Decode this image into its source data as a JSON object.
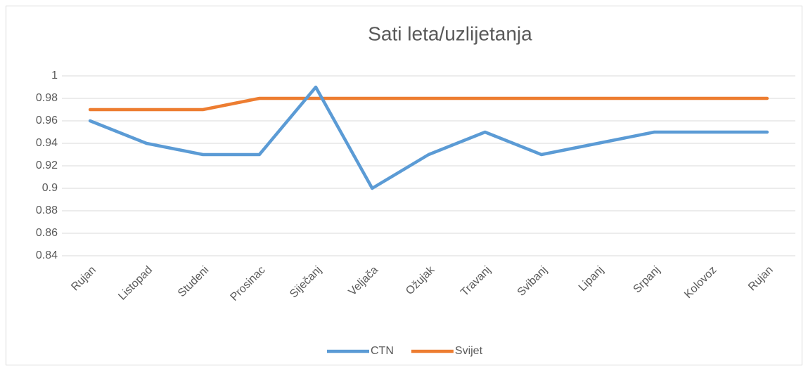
{
  "chart_data": {
    "type": "line",
    "title": "Sati leta/uzlijetanja",
    "categories": [
      "Rujan",
      "Listopad",
      "Studeni",
      "Prosinac",
      "Siječanj",
      "Veljača",
      "Ožujak",
      "Travanj",
      "Svibanj",
      "Lipanj",
      "Srpanj",
      "Kolovoz",
      "Rujan"
    ],
    "series": [
      {
        "name": "CTN",
        "color": "#5b9bd5",
        "values": [
          0.96,
          0.94,
          0.93,
          0.93,
          0.99,
          0.9,
          0.93,
          0.95,
          0.93,
          0.94,
          0.95,
          0.95,
          0.95
        ]
      },
      {
        "name": "Svijet",
        "color": "#ed7d31",
        "values": [
          0.97,
          0.97,
          0.97,
          0.98,
          0.98,
          0.98,
          0.98,
          0.98,
          0.98,
          0.98,
          0.98,
          0.98,
          0.98
        ]
      }
    ],
    "ylim": [
      0.84,
      1
    ],
    "yticks": [
      0.84,
      0.86,
      0.88,
      0.9,
      0.92,
      0.94,
      0.96,
      0.98,
      1
    ],
    "grid": true,
    "legend": "bottom"
  }
}
